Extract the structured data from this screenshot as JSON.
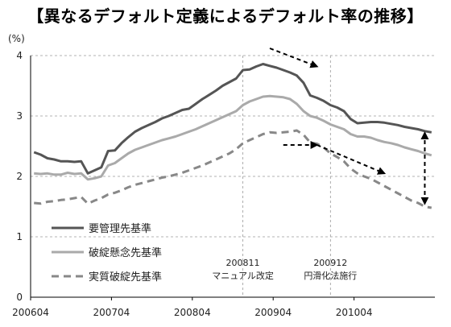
{
  "title": "【異なるデフォルト定義によるデフォルト率の推移】",
  "chart_data": {
    "type": "line",
    "title": "【異なるデフォルト定義によるデフォルト率の推移】",
    "ylabel": "(%)",
    "xlabel": "",
    "ylim": [
      0,
      4
    ],
    "yticks": [
      0,
      1,
      2,
      3,
      4
    ],
    "xticks": [
      "200604",
      "200704",
      "200804",
      "200904",
      "201004"
    ],
    "grid": "dashed horizontal and vertical",
    "legend_position": "lower-left",
    "x": [
      "200604",
      "200605",
      "200606",
      "200607",
      "200608",
      "200609",
      "200610",
      "200611",
      "200612",
      "200701",
      "200702",
      "200703",
      "200704",
      "200705",
      "200706",
      "200707",
      "200708",
      "200709",
      "200710",
      "200711",
      "200712",
      "200801",
      "200802",
      "200803",
      "200804",
      "200805",
      "200806",
      "200807",
      "200808",
      "200809",
      "200810",
      "200811",
      "200812",
      "200901",
      "200902",
      "200903",
      "200904",
      "200905",
      "200906",
      "200907",
      "200908",
      "200909",
      "200910",
      "200911",
      "200912",
      "201001",
      "201002",
      "201003",
      "201004",
      "201005",
      "201006",
      "201007",
      "201008",
      "201009",
      "201010",
      "201011",
      "201012",
      "201101",
      "201102",
      "201103"
    ],
    "series": [
      {
        "name": "要管理先基準",
        "color": "#555555",
        "style": "solid-thick",
        "values": [
          2.4,
          2.36,
          2.3,
          2.28,
          2.25,
          2.25,
          2.24,
          2.25,
          2.05,
          2.1,
          2.15,
          2.42,
          2.43,
          2.55,
          2.65,
          2.74,
          2.8,
          2.85,
          2.9,
          2.96,
          3.0,
          3.05,
          3.1,
          3.12,
          3.2,
          3.28,
          3.35,
          3.42,
          3.5,
          3.56,
          3.62,
          3.76,
          3.77,
          3.82,
          3.86,
          3.83,
          3.8,
          3.76,
          3.72,
          3.67,
          3.55,
          3.34,
          3.3,
          3.25,
          3.18,
          3.14,
          3.08,
          2.95,
          2.88,
          2.89,
          2.9,
          2.9,
          2.89,
          2.87,
          2.85,
          2.82,
          2.8,
          2.78,
          2.75,
          2.73
        ]
      },
      {
        "name": "破綻懸念先基準",
        "color": "#aaaaaa",
        "style": "solid-thick",
        "values": [
          2.05,
          2.04,
          2.05,
          2.03,
          2.03,
          2.06,
          2.04,
          2.05,
          1.95,
          1.97,
          2.0,
          2.18,
          2.22,
          2.3,
          2.38,
          2.44,
          2.48,
          2.52,
          2.56,
          2.6,
          2.63,
          2.66,
          2.7,
          2.74,
          2.78,
          2.83,
          2.88,
          2.93,
          2.98,
          3.03,
          3.08,
          3.18,
          3.24,
          3.28,
          3.32,
          3.33,
          3.32,
          3.31,
          3.28,
          3.2,
          3.08,
          3.0,
          2.97,
          2.92,
          2.86,
          2.82,
          2.78,
          2.7,
          2.66,
          2.66,
          2.64,
          2.6,
          2.57,
          2.55,
          2.52,
          2.48,
          2.45,
          2.42,
          2.38,
          2.35
        ]
      },
      {
        "name": "実質破綻先基準",
        "color": "#888888",
        "style": "dashed-thick",
        "values": [
          1.56,
          1.55,
          1.58,
          1.59,
          1.61,
          1.62,
          1.64,
          1.66,
          1.55,
          1.6,
          1.64,
          1.7,
          1.73,
          1.77,
          1.82,
          1.86,
          1.89,
          1.92,
          1.95,
          1.98,
          2.0,
          2.03,
          2.06,
          2.1,
          2.14,
          2.18,
          2.23,
          2.28,
          2.33,
          2.38,
          2.45,
          2.55,
          2.6,
          2.65,
          2.7,
          2.73,
          2.72,
          2.73,
          2.74,
          2.76,
          2.69,
          2.56,
          2.54,
          2.48,
          2.38,
          2.32,
          2.25,
          2.13,
          2.05,
          2.0,
          1.96,
          1.9,
          1.84,
          1.78,
          1.72,
          1.66,
          1.6,
          1.56,
          1.5,
          1.48
        ]
      }
    ],
    "vlines": [
      {
        "x": "200811",
        "label": [
          "200811",
          "マニュアル改定"
        ]
      },
      {
        "x": "200912",
        "label": [
          "200912",
          "円滑化法施行"
        ]
      }
    ],
    "arrows": [
      {
        "from": [
          "200903",
          4.12
        ],
        "to": [
          "200910",
          3.82
        ],
        "style": "dashed"
      },
      {
        "from": [
          "200905",
          2.52
        ],
        "to": [
          "200910",
          2.52
        ],
        "style": "dashed"
      },
      {
        "from": [
          "200910",
          2.52
        ],
        "to": [
          "201008",
          2.05
        ],
        "style": "dashed"
      },
      {
        "from": [
          "201102",
          2.72
        ],
        "to": [
          "201102",
          1.55
        ],
        "style": "dashed-double"
      }
    ]
  }
}
